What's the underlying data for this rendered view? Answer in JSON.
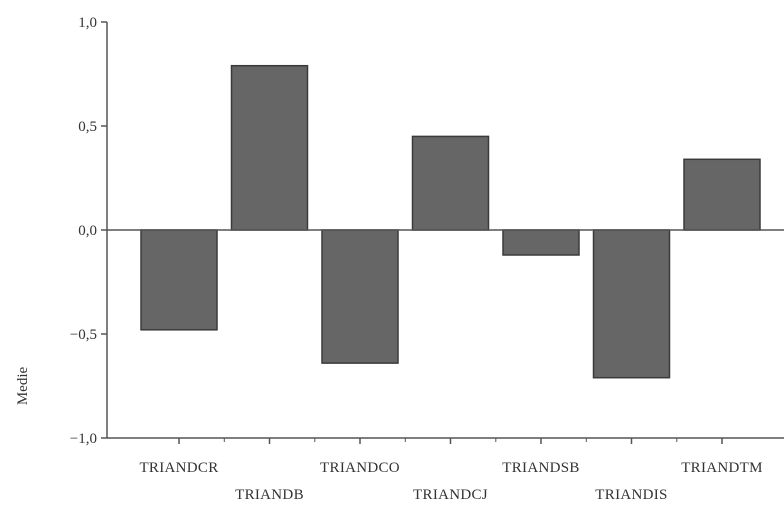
{
  "chart_data": {
    "type": "bar",
    "categories": [
      "TRIANDCR",
      "TRIANDB",
      "TRIANDCO",
      "TRIANDCJ",
      "TRIANDSB",
      "TRIANDIS",
      "TRIANDTM"
    ],
    "values": [
      -0.48,
      0.79,
      -0.64,
      0.45,
      -0.12,
      -0.71,
      0.34
    ],
    "ylabel": "Medie",
    "ylim": [
      -1.0,
      1.0
    ],
    "yticks": [
      -1.0,
      -0.5,
      0.0,
      0.5,
      1.0
    ],
    "ytick_labels": [
      "−1,0",
      "−0,5",
      "0,0",
      "0,5",
      "1,0"
    ],
    "legend": "none",
    "grid": false,
    "colors": {
      "bar_fill": "#666666",
      "bar_stroke": "#3a3a3a",
      "axis": "#555555",
      "zero_line": "#555555"
    }
  }
}
